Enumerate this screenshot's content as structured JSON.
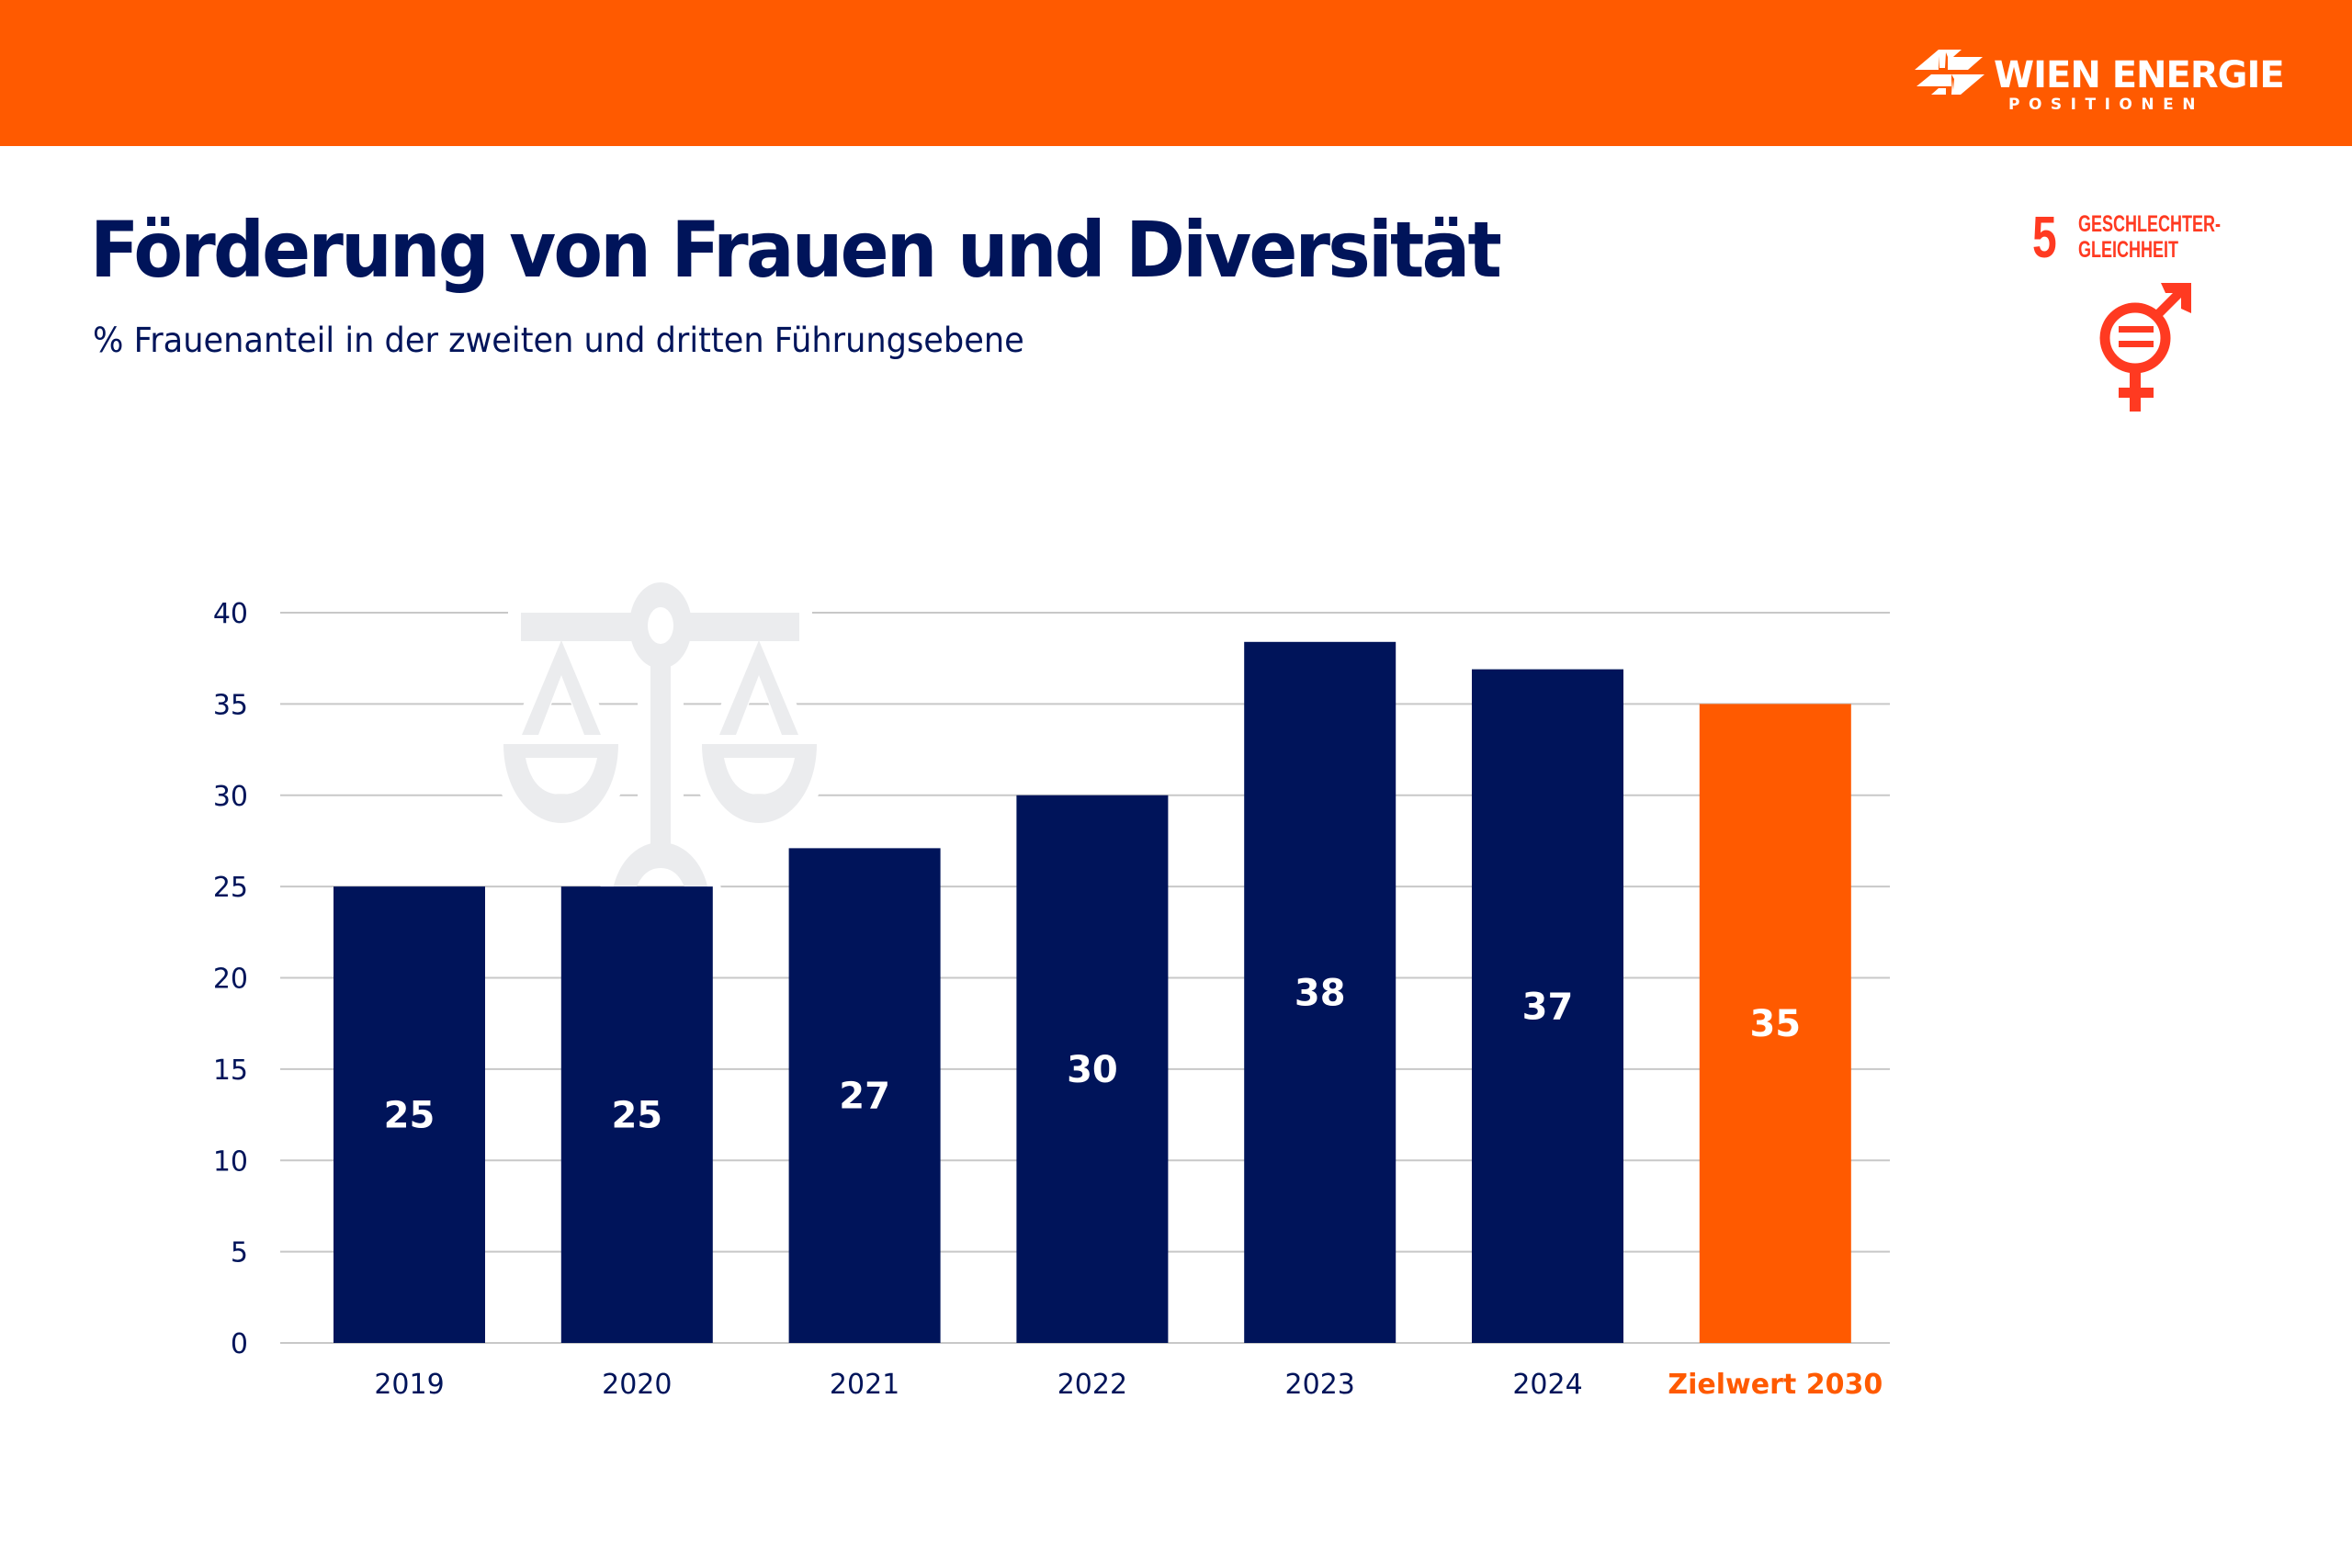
{
  "header": {
    "brand_name": "WIEN ENERGIE",
    "brand_sub": "POSITIONEN",
    "brand_color": "#FF5A00",
    "logo_icon": "wien-energie-logo-icon"
  },
  "title": "Förderung von Frauen und Diversität",
  "subtitle": "% Frauenanteil in der zweiten und dritten Führungsebene",
  "sdg": {
    "number": "5",
    "label_line1": "GESCHLECHTER-",
    "label_line2": "GLEICHHEIT",
    "icon": "gender-equality-icon",
    "color": "#FF3A21"
  },
  "decoration": {
    "icon": "balance-scale-icon",
    "color": "#EBECEE"
  },
  "chart_data": {
    "type": "bar",
    "title": "Förderung von Frauen und Diversität",
    "subtitle": "% Frauenanteil in der zweiten und dritten Führungsebene",
    "xlabel": "",
    "ylabel": "",
    "categories": [
      "2019",
      "2020",
      "2021",
      "2022",
      "2023",
      "2024",
      "Zielwert 2030"
    ],
    "values": [
      25,
      25,
      27.1,
      30,
      38.4,
      36.9,
      35
    ],
    "data_labels": [
      "25",
      "25",
      "27",
      "30",
      "38",
      "37",
      "35"
    ],
    "highlight_index": 6,
    "ylim": [
      0,
      40
    ],
    "yticks": [
      0,
      5,
      10,
      15,
      20,
      25,
      30,
      35,
      40
    ],
    "grid": true,
    "legend": "none",
    "colors": {
      "bar": "#00145A",
      "highlight": "#FF5A00",
      "grid": "#C8C8C8",
      "axis_text": "#00145A"
    }
  }
}
